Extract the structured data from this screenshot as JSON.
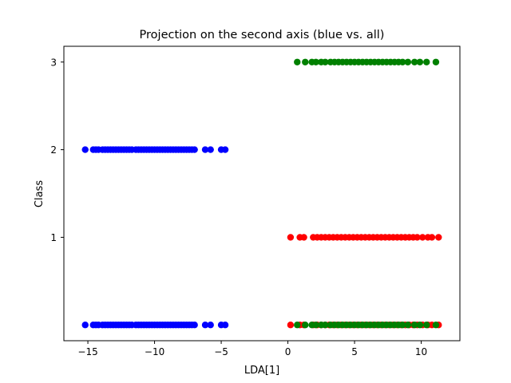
{
  "chart_data": {
    "type": "scatter",
    "title": "Projection on the second axis (blue vs. all)",
    "xlabel": "LDA[1]",
    "ylabel": "Class",
    "xlim": [
      -16.8,
      12.9
    ],
    "ylim": [
      -0.18,
      3.18
    ],
    "xticks": [
      {
        "value": -15,
        "label": "−15"
      },
      {
        "value": -10,
        "label": "−10"
      },
      {
        "value": -5,
        "label": "−5"
      },
      {
        "value": 0,
        "label": "0"
      },
      {
        "value": 5,
        "label": "5"
      },
      {
        "value": 10,
        "label": "10"
      }
    ],
    "yticks": [
      {
        "value": 1,
        "label": "1"
      },
      {
        "value": 2,
        "label": "2"
      },
      {
        "value": 3,
        "label": "3"
      }
    ],
    "grid": false,
    "legend": "none",
    "series": [
      {
        "color": "#0000ff",
        "class_value": 2,
        "x": [
          -15.2,
          -14.6,
          -14.4,
          -14.2,
          -13.9,
          -13.7,
          -13.5,
          -13.3,
          -13.1,
          -12.9,
          -12.7,
          -12.5,
          -12.3,
          -12.1,
          -11.9,
          -11.7,
          -11.4,
          -11.2,
          -11.0,
          -10.8,
          -10.6,
          -10.4,
          -10.2,
          -10.0,
          -9.8,
          -9.6,
          -9.4,
          -9.2,
          -9.0,
          -8.8,
          -8.6,
          -8.4,
          -8.2,
          -8.0,
          -7.8,
          -7.6,
          -7.4,
          -7.2,
          -7.0,
          -6.2,
          -5.8,
          -5.0,
          -4.7
        ]
      },
      {
        "color": "#ff0000",
        "class_value": 1,
        "x": [
          0.2,
          0.9,
          1.2,
          1.9,
          2.2,
          2.5,
          2.8,
          3.1,
          3.4,
          3.7,
          4.0,
          4.3,
          4.6,
          4.9,
          5.2,
          5.5,
          5.8,
          6.1,
          6.4,
          6.7,
          7.0,
          7.3,
          7.6,
          7.9,
          8.2,
          8.5,
          8.8,
          9.1,
          9.4,
          9.7,
          10.1,
          10.5,
          10.8,
          11.3
        ]
      },
      {
        "color": "#008000",
        "class_value": 3,
        "x": [
          0.7,
          1.3,
          1.8,
          2.1,
          2.5,
          2.8,
          3.2,
          3.5,
          3.8,
          4.1,
          4.4,
          4.7,
          5.0,
          5.3,
          5.6,
          5.9,
          6.2,
          6.5,
          6.8,
          7.1,
          7.4,
          7.7,
          8.0,
          8.3,
          8.6,
          9.0,
          9.5,
          9.9,
          10.4,
          11.1
        ]
      }
    ]
  }
}
